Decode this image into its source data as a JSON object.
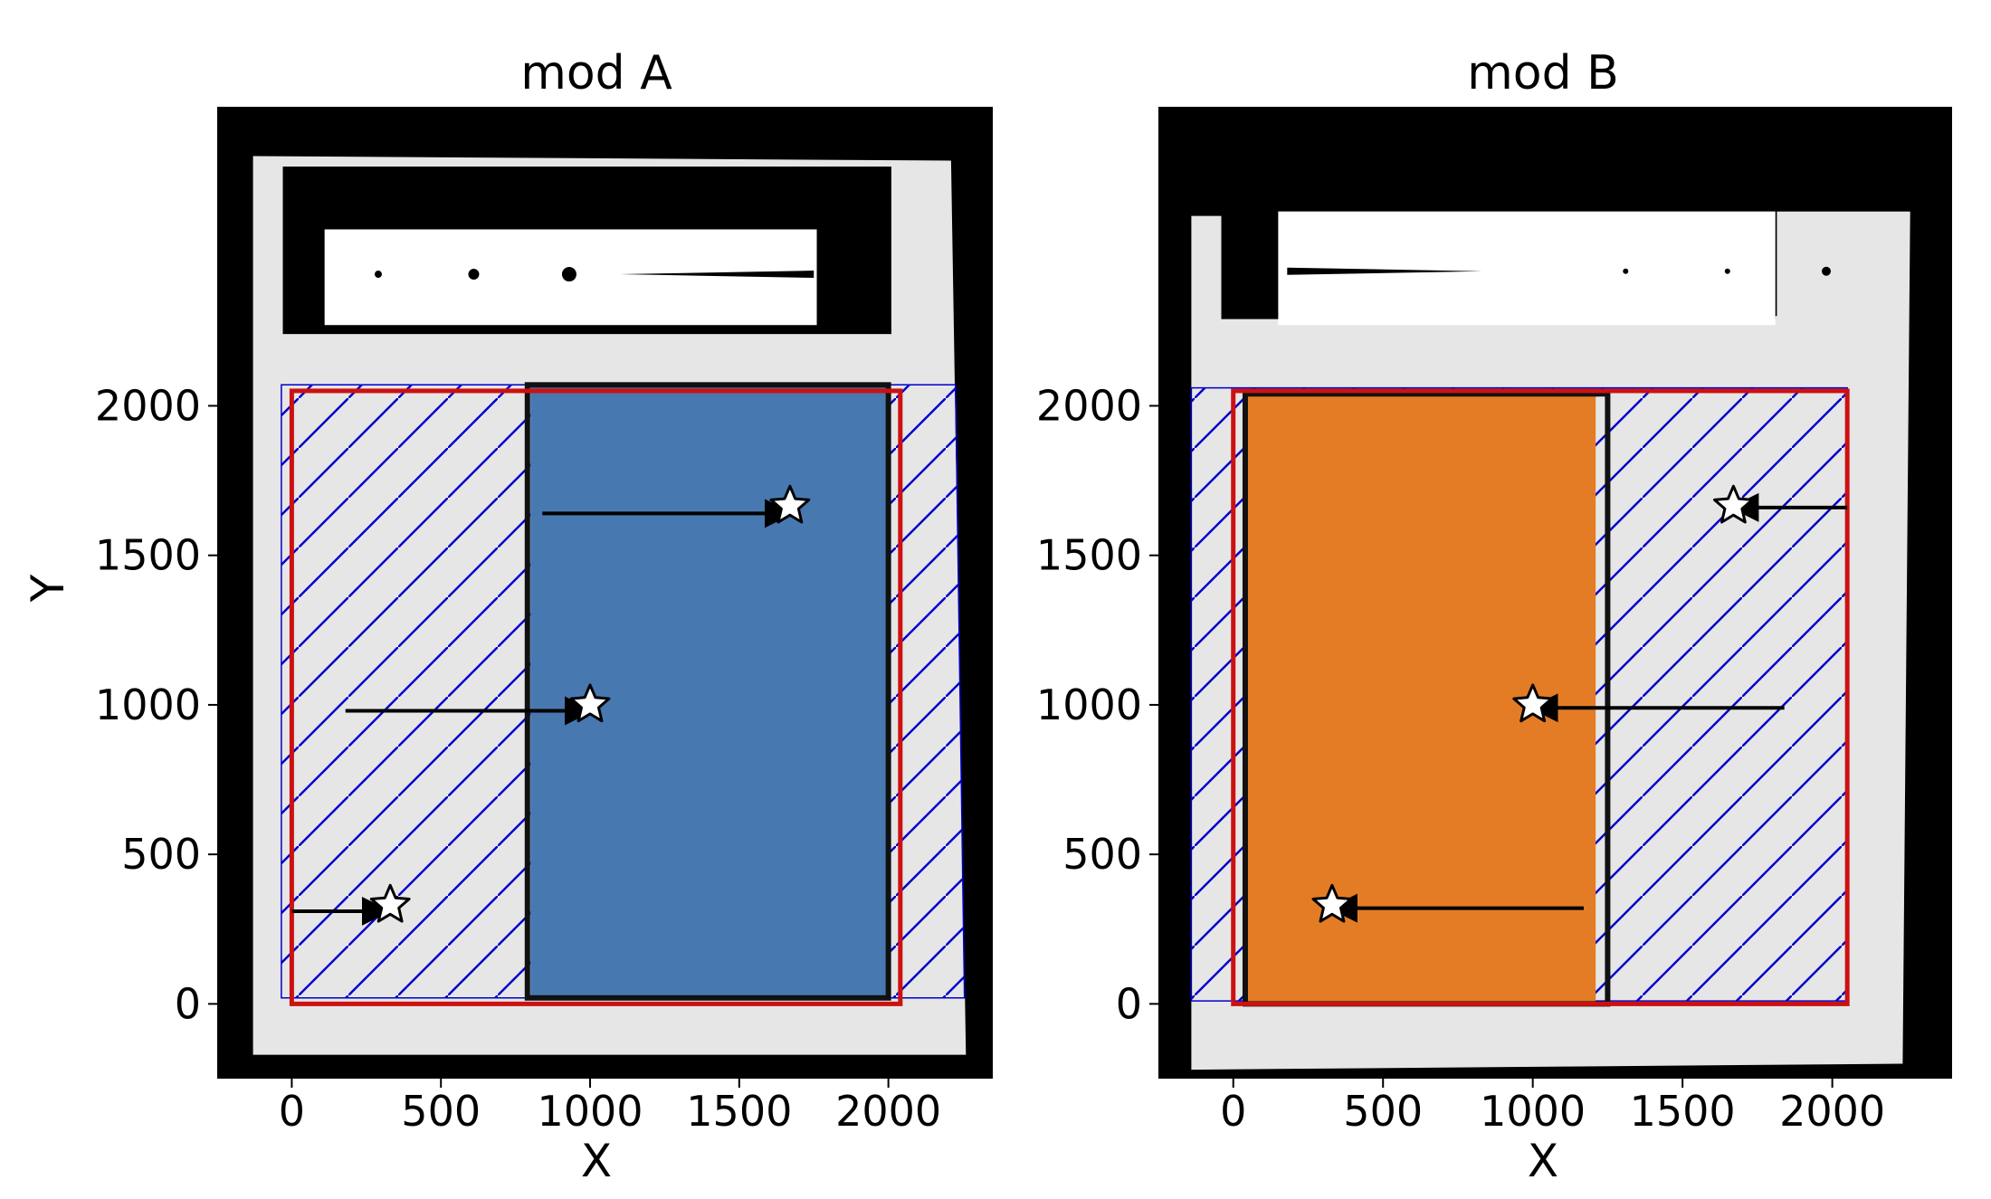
{
  "chart_data": [
    {
      "type": "scatter",
      "title": "mod A",
      "xlabel": "X",
      "ylabel": "Y",
      "xlim": [
        -250,
        2350
      ],
      "ylim": [
        -250,
        3000
      ],
      "xticks": [
        0,
        500,
        1000,
        1500,
        2000
      ],
      "yticks": [
        0,
        500,
        1000,
        1500,
        2000
      ],
      "background": "#000000",
      "detector_color": "#e6e6e6",
      "detector": [
        [
          -130,
          2835
        ],
        [
          2210,
          2820
        ],
        [
          2260,
          -170
        ],
        [
          -130,
          -170
        ]
      ],
      "top_block": {
        "color": "#000000",
        "x": [
          -30,
          2010
        ],
        "y": [
          2240,
          2800
        ]
      },
      "spectrum_window": {
        "color": "#ffffff",
        "x": [
          110,
          1760
        ],
        "y": [
          2270,
          2590
        ]
      },
      "spectrum_trace": {
        "y": 2440,
        "dots": [
          {
            "x": 290,
            "r": 4
          },
          {
            "x": 610,
            "r": 6
          },
          {
            "x": 930,
            "r": 8
          }
        ],
        "streak": [
          1100,
          1750
        ]
      },
      "hatched_region": {
        "color": "#0000cc",
        "corners": [
          [
            -35,
            2070
          ],
          [
            2225,
            2070
          ],
          [
            2255,
            20
          ],
          [
            -35,
            20
          ]
        ]
      },
      "filled_region": {
        "color": "#4878b0",
        "x": [
          800,
          2000
        ],
        "y": [
          20,
          2070
        ]
      },
      "black_box": {
        "color": "#111111",
        "x": [
          790,
          2000
        ],
        "y": [
          20,
          2070
        ]
      },
      "red_box": {
        "color": "#cc1111",
        "x": [
          0,
          2040
        ],
        "y": [
          0,
          2050
        ]
      },
      "arrows": [
        {
          "from": [
            840,
            1640
          ],
          "to": [
            1670,
            1640
          ]
        },
        {
          "from": [
            180,
            980
          ],
          "to": [
            1000,
            980
          ]
        },
        {
          "from": [
            0,
            310
          ],
          "to": [
            320,
            310
          ]
        }
      ],
      "stars": [
        {
          "x": 1670,
          "y": 1665
        },
        {
          "x": 1000,
          "y": 1000
        },
        {
          "x": 330,
          "y": 330
        }
      ]
    },
    {
      "type": "scatter",
      "title": "mod B",
      "xlabel": "X",
      "ylabel": "",
      "xlim": [
        -250,
        2400
      ],
      "ylim": [
        -250,
        3000
      ],
      "xticks": [
        0,
        500,
        1000,
        1500,
        2000
      ],
      "yticks": [
        0,
        500,
        1000,
        1500,
        2000
      ],
      "background": "#000000",
      "detector_color": "#e6e6e6",
      "detector": [
        [
          -140,
          2635
        ],
        [
          -40,
          2635
        ],
        [
          -40,
          2300
        ],
        [
          1815,
          2300
        ],
        [
          1815,
          2650
        ],
        [
          2260,
          2650
        ],
        [
          2235,
          -200
        ],
        [
          -140,
          -220
        ]
      ],
      "top_block": {
        "color": "#000000",
        "x": [
          -40,
          1810
        ],
        "y": [
          2290,
          2780
        ]
      },
      "spectrum_window": {
        "color": "#ffffff",
        "x": [
          150,
          1810
        ],
        "y": [
          2270,
          2650
        ]
      },
      "spectrum_trace": {
        "y": 2450,
        "dots": [
          {
            "x": 1980,
            "r": 5
          },
          {
            "x": 1310,
            "r": 3
          },
          {
            "x": 1650,
            "r": 3
          }
        ],
        "streak": [
          180,
          830
        ]
      },
      "hatched_region": {
        "color": "#0000cc",
        "corners": [
          [
            -140,
            2060
          ],
          [
            2050,
            2060
          ],
          [
            2050,
            10
          ],
          [
            -140,
            10
          ]
        ]
      },
      "filled_region": {
        "color": "#e37c25",
        "x": [
          40,
          1210
        ],
        "y": [
          0,
          2040
        ]
      },
      "black_box": {
        "color": "#111111",
        "x": [
          40,
          1250
        ],
        "y": [
          0,
          2040
        ]
      },
      "red_box": {
        "color": "#cc1111",
        "x": [
          0,
          2050
        ],
        "y": [
          0,
          2050
        ]
      },
      "arrows": [
        {
          "from": [
            2050,
            1660
          ],
          "to": [
            1670,
            1660
          ]
        },
        {
          "from": [
            1840,
            990
          ],
          "to": [
            1000,
            990
          ]
        },
        {
          "from": [
            1170,
            320
          ],
          "to": [
            330,
            320
          ]
        }
      ],
      "stars": [
        {
          "x": 1670,
          "y": 1665
        },
        {
          "x": 1000,
          "y": 1000
        },
        {
          "x": 330,
          "y": 330
        }
      ]
    }
  ]
}
